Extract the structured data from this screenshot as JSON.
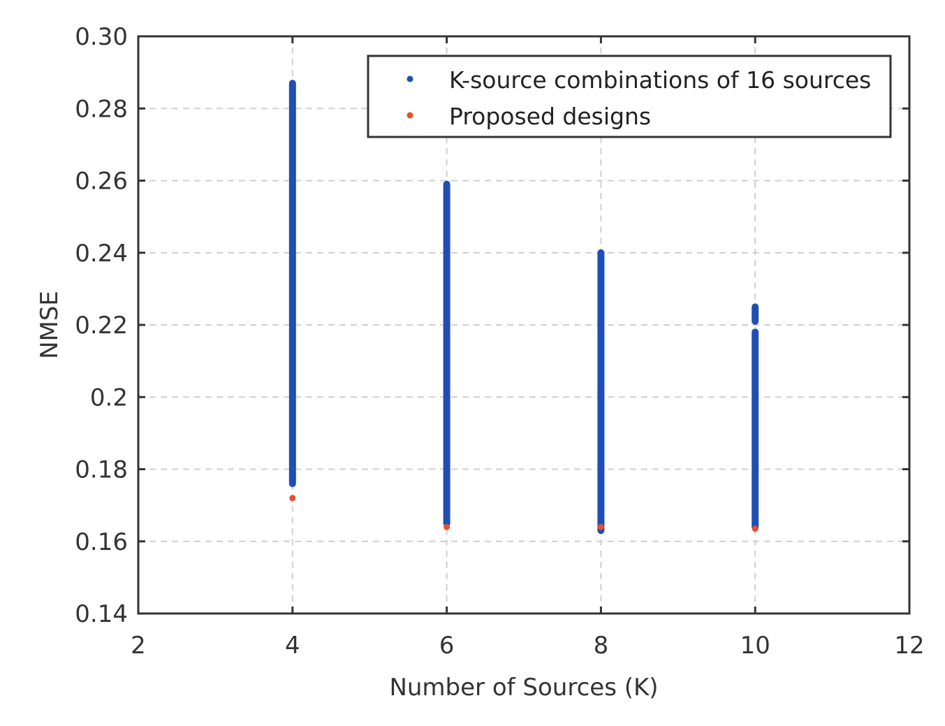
{
  "chart_data": {
    "type": "scatter",
    "xlabel": "Number of Sources (K)",
    "ylabel": "NMSE",
    "xlim": [
      2,
      12
    ],
    "ylim": [
      0.14,
      0.3
    ],
    "xticks": [
      2,
      4,
      6,
      8,
      10,
      12
    ],
    "xtick_labels": [
      "2",
      "4",
      "6",
      "8",
      "10",
      "12"
    ],
    "yticks": [
      0.14,
      0.16,
      0.18,
      0.2,
      0.22,
      0.24,
      0.26,
      0.28,
      0.3
    ],
    "ytick_labels": [
      "0.14",
      "0.16",
      "0.18",
      "0.2",
      "0.22",
      "0.24",
      "0.26",
      "0.28",
      "0.30"
    ],
    "grid": true,
    "legend_position": "top-right",
    "series": [
      {
        "name": "K-source combinations of 16 sources",
        "color": "#1f4fb4",
        "marker": "dot",
        "ranges": [
          {
            "x": 4,
            "y_min": 0.176,
            "y_max": 0.287
          },
          {
            "x": 6,
            "y_min": 0.165,
            "y_max": 0.259
          },
          {
            "x": 8,
            "y_min": 0.163,
            "y_max": 0.24
          },
          {
            "x": 10,
            "y_min": 0.164,
            "y_max": 0.218
          },
          {
            "x": 10,
            "y_min": 0.221,
            "y_max": 0.225
          }
        ]
      },
      {
        "name": "Proposed designs",
        "color": "#e8502a",
        "marker": "dot",
        "points": [
          {
            "x": 4,
            "y": 0.172
          },
          {
            "x": 6,
            "y": 0.164
          },
          {
            "x": 8,
            "y": 0.164
          },
          {
            "x": 10,
            "y": 0.1635
          }
        ]
      }
    ]
  }
}
